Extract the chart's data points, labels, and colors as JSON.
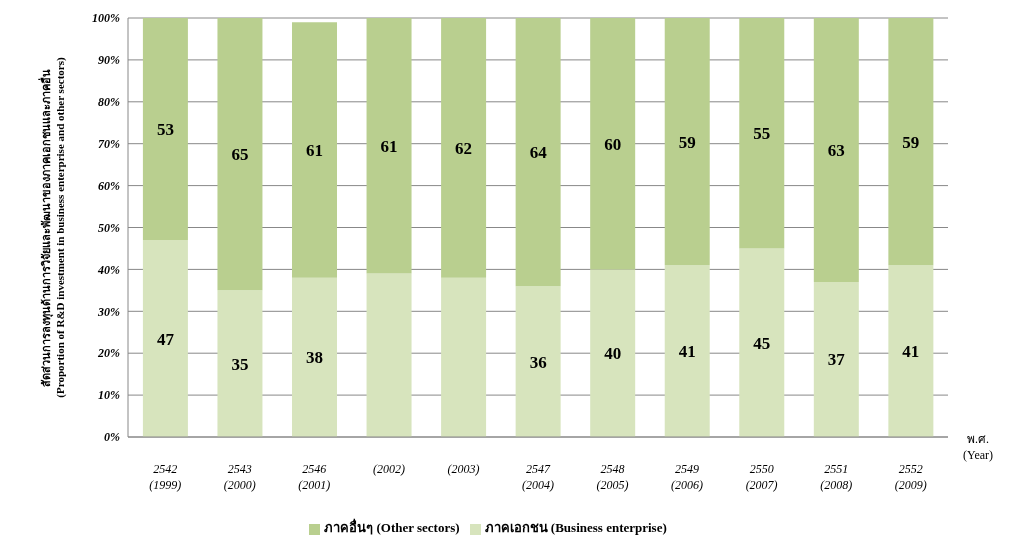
{
  "chart_data": {
    "type": "bar",
    "stacked": true,
    "ylabel": "สัดส่วนการลงทุนด้านการวิจัยและพัฒนาของภาคเอกชนและภาคอื่น\n(Proportion of R&D investment in business enterprise and other sectors)",
    "xlabel": "พ.ศ.\n(Year)",
    "categories": [
      "2542\n(1999)",
      "2543\n(2000)",
      "2546\n(2001)",
      "(2002)",
      "(2003)",
      "2547\n(2004)",
      "2548\n(2005)",
      "2549\n(2006)",
      "2550\n(2007)",
      "2551\n(2008)",
      "2552\n(2009)"
    ],
    "series": [
      {
        "name": "ภาคเอกชน (Business enterprise)",
        "color": "#d7e4bd",
        "values": [
          47,
          35,
          38,
          39,
          38,
          36,
          40,
          41,
          45,
          37,
          41
        ],
        "value_labels": [
          "47",
          "35",
          "38",
          null,
          null,
          "36",
          "40",
          "41",
          "45",
          "37",
          "41"
        ]
      },
      {
        "name": "ภาคอื่นๆ (Other sectors)",
        "color": "#b9cf8f",
        "values": [
          53,
          65,
          61,
          61,
          62,
          64,
          60,
          59,
          55,
          63,
          59
        ],
        "value_labels": [
          "53",
          "65",
          "61",
          "61",
          "62",
          "64",
          "60",
          "59",
          "55",
          "63",
          "59"
        ]
      }
    ],
    "ylim": [
      0,
      100
    ],
    "yticks": [
      {
        "value": 0,
        "label": "0%"
      },
      {
        "value": 10,
        "label": "10%"
      },
      {
        "value": 20,
        "label": "20%"
      },
      {
        "value": 30,
        "label": "30%"
      },
      {
        "value": 40,
        "label": "40%"
      },
      {
        "value": 50,
        "label": "50%"
      },
      {
        "value": 60,
        "label": "60%"
      },
      {
        "value": 70,
        "label": "70%"
      },
      {
        "value": 80,
        "label": "80%"
      },
      {
        "value": 90,
        "label": "90%"
      },
      {
        "value": 100,
        "label": "100%"
      }
    ],
    "grid": "y",
    "legend": "bottom"
  }
}
